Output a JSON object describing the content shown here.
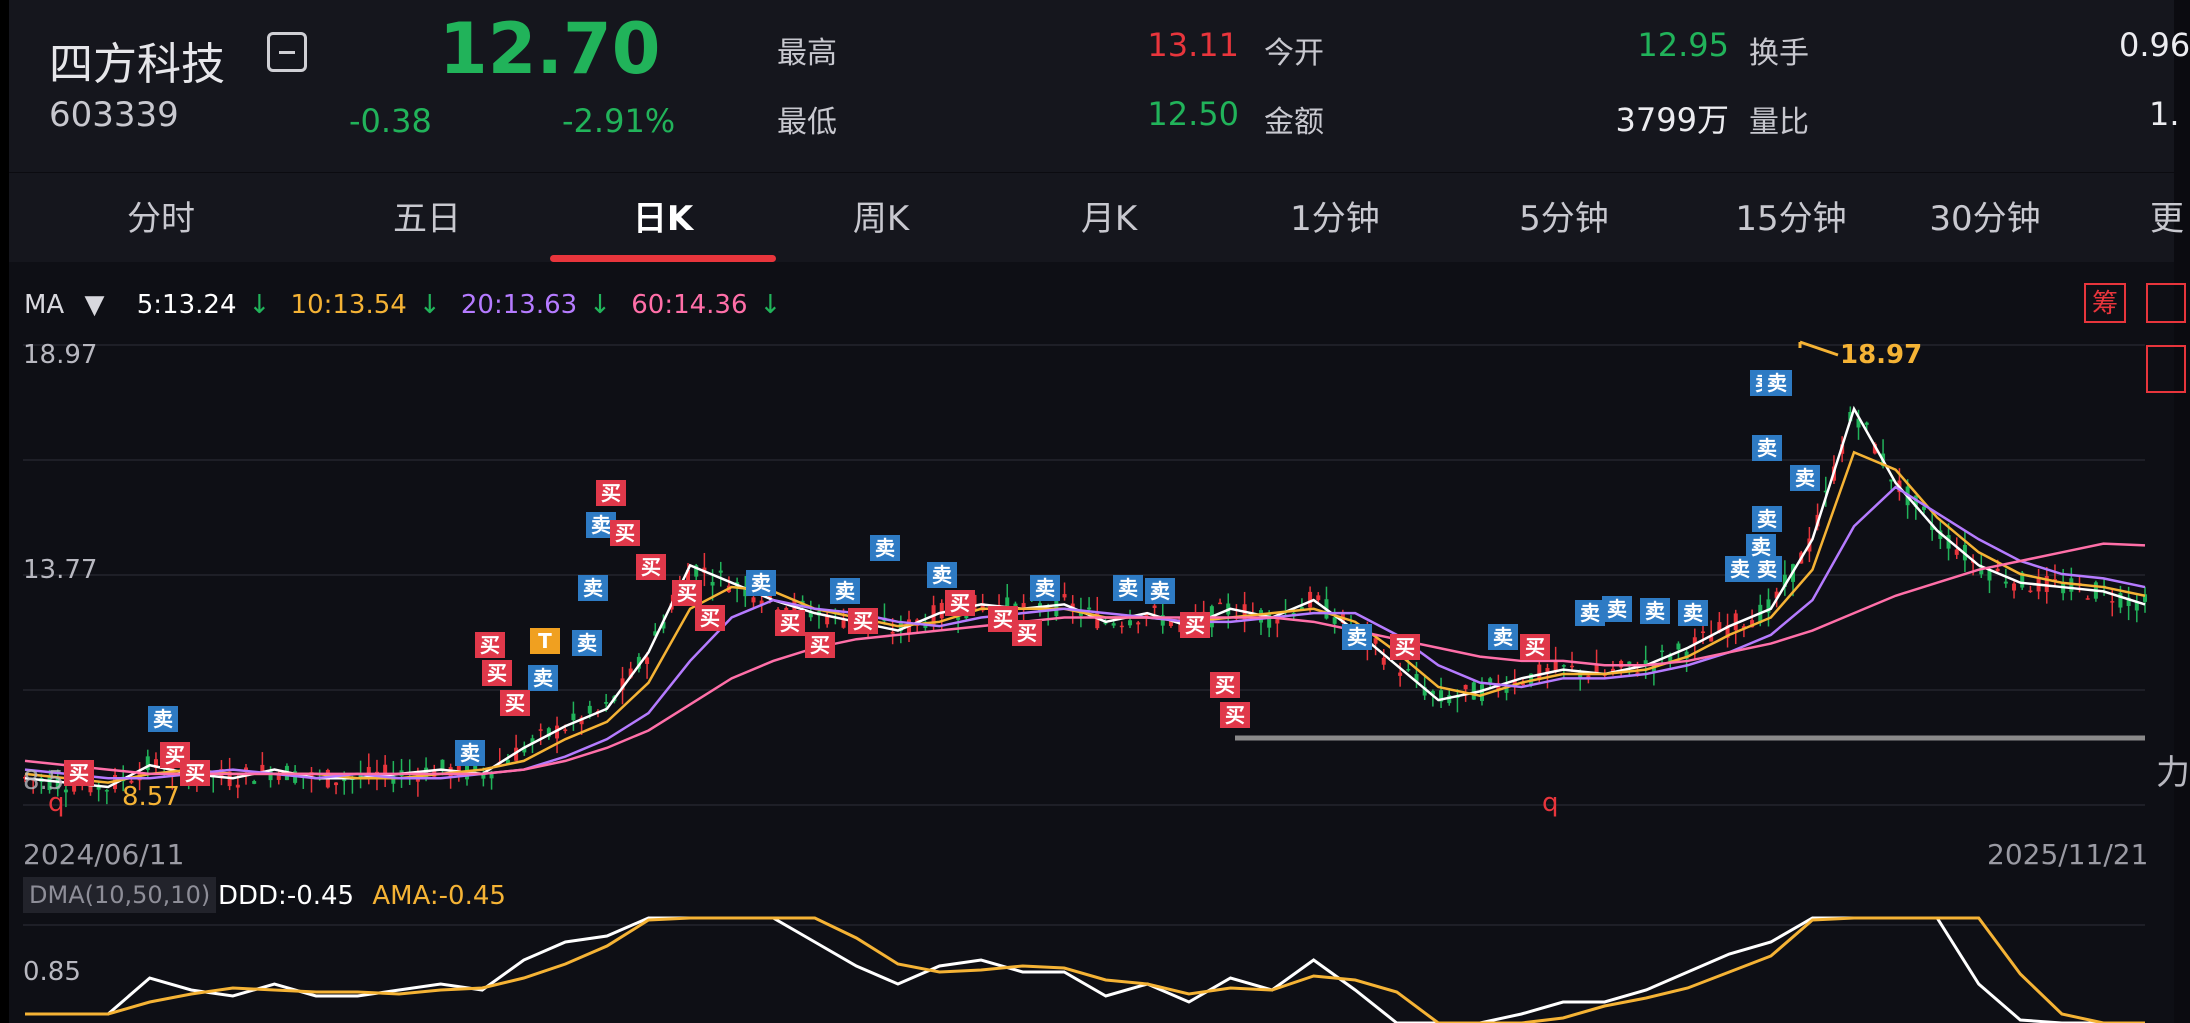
{
  "header": {
    "stock_name": "四方科技",
    "stock_code": "603339",
    "price": "12.70",
    "change": "-0.38",
    "change_pct": "-2.91%",
    "quotes": [
      {
        "label": "最高",
        "value": "13.11",
        "color": "red"
      },
      {
        "label": "最低",
        "value": "12.50",
        "color": "green"
      },
      {
        "label": "今开",
        "value": "12.95",
        "color": "green"
      },
      {
        "label": "金额",
        "value": "3799万",
        "color": "white"
      },
      {
        "label": "换手",
        "value": "0.96",
        "color": "white"
      },
      {
        "label": "量比",
        "value": "1.",
        "color": "white"
      }
    ]
  },
  "tabs": [
    "分时",
    "五日",
    "日K",
    "周K",
    "月K",
    "1分钟",
    "5分钟",
    "15分钟",
    "30分钟",
    "更"
  ],
  "active_tab": "日K",
  "ma": {
    "label": "MA",
    "ma5": "5:13.24",
    "ma10": "10:13.54",
    "ma20": "20:13.63",
    "ma60": "60:14.36",
    "arrow": "↓",
    "colors": {
      "ma5": "#ffffff",
      "ma10": "#f5b335",
      "ma20": "#b57bff",
      "ma60": "#ff6fa8"
    }
  },
  "badge_chou": "筹",
  "axis": {
    "top": "18.97",
    "mid": "13.77",
    "low": "8.5"
  },
  "annotations": {
    "high": "18.97",
    "low": "8.57",
    "q1": "q",
    "q2": "q",
    "right_char": "力"
  },
  "dates": {
    "start": "2024/06/11",
    "end": "2025/11/21"
  },
  "dma": {
    "label": "DMA(10,50,10)",
    "ddd": "DDD:-0.45",
    "ama": "AMA:-0.45",
    "axis": "0.85"
  },
  "signals": {
    "buy": "买",
    "sell": "卖",
    "t": "T"
  },
  "chart_data": {
    "type": "candlestick",
    "ylim": [
      8.5,
      18.97
    ],
    "series": [
      {
        "name": "MA5",
        "values": [
          9.0,
          8.9,
          8.8,
          9.3,
          9.1,
          9.0,
          9.2,
          9.0,
          9.0,
          9.1,
          9.2,
          9.1,
          9.7,
          10.2,
          10.6,
          11.9,
          13.9,
          13.5,
          13.1,
          12.8,
          12.6,
          12.4,
          12.8,
          13.0,
          12.9,
          13.0,
          12.6,
          12.8,
          12.5,
          12.9,
          12.7,
          13.1,
          12.4,
          11.6,
          10.8,
          11.0,
          11.3,
          11.5,
          11.4,
          11.6,
          12.0,
          12.5,
          12.9,
          14.5,
          17.5,
          15.8,
          14.7,
          13.9,
          13.5,
          13.4,
          13.3,
          13.0
        ]
      },
      {
        "name": "MA10",
        "values": [
          9.1,
          9.0,
          8.9,
          9.1,
          9.2,
          9.1,
          9.1,
          9.1,
          9.0,
          9.0,
          9.1,
          9.2,
          9.4,
          9.9,
          10.3,
          11.2,
          12.9,
          13.4,
          13.3,
          12.9,
          12.7,
          12.5,
          12.6,
          12.9,
          12.9,
          12.9,
          12.7,
          12.7,
          12.6,
          12.7,
          12.8,
          12.9,
          12.6,
          11.9,
          11.1,
          10.9,
          11.2,
          11.4,
          11.4,
          11.5,
          11.8,
          12.3,
          12.7,
          13.8,
          16.5,
          16.1,
          15.0,
          14.2,
          13.7,
          13.5,
          13.4,
          13.2
        ]
      },
      {
        "name": "MA20",
        "values": [
          9.2,
          9.1,
          9.0,
          9.0,
          9.1,
          9.2,
          9.1,
          9.0,
          9.1,
          9.0,
          9.0,
          9.1,
          9.2,
          9.5,
          9.9,
          10.5,
          11.7,
          12.7,
          13.1,
          12.9,
          12.8,
          12.6,
          12.5,
          12.7,
          12.8,
          12.9,
          12.8,
          12.7,
          12.6,
          12.6,
          12.7,
          12.8,
          12.8,
          12.3,
          11.6,
          11.2,
          11.1,
          11.3,
          11.3,
          11.4,
          11.6,
          11.9,
          12.3,
          13.1,
          14.8,
          15.7,
          15.1,
          14.5,
          14.0,
          13.7,
          13.6,
          13.4
        ]
      },
      {
        "name": "MA60",
        "values": [
          9.4,
          9.3,
          9.2,
          9.1,
          9.1,
          9.1,
          9.1,
          9.1,
          9.1,
          9.1,
          9.1,
          9.1,
          9.2,
          9.4,
          9.7,
          10.1,
          10.7,
          11.3,
          11.7,
          12.0,
          12.2,
          12.3,
          12.4,
          12.5,
          12.6,
          12.7,
          12.7,
          12.7,
          12.7,
          12.7,
          12.7,
          12.6,
          12.4,
          12.2,
          12.0,
          11.8,
          11.7,
          11.7,
          11.6,
          11.6,
          11.7,
          11.9,
          12.1,
          12.4,
          12.8,
          13.2,
          13.5,
          13.8,
          14.0,
          14.2,
          14.4,
          14.36
        ]
      }
    ]
  }
}
